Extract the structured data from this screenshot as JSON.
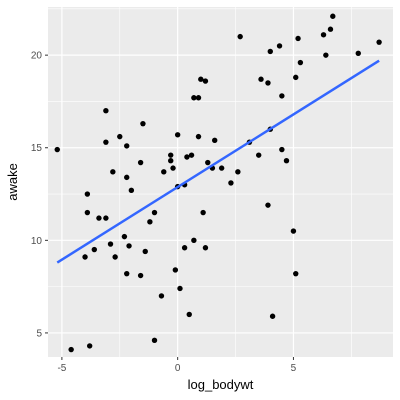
{
  "chart_data": {
    "type": "scatter",
    "xlabel": "log_bodywt",
    "ylabel": "awake",
    "xlim": [
      -5.6,
      9.3
    ],
    "ylim": [
      3.7,
      22.6
    ],
    "x_ticks": [
      -5,
      0,
      5
    ],
    "y_ticks": [
      5,
      10,
      15,
      20
    ],
    "x_tick_labels": [
      "-5",
      "0",
      "5"
    ],
    "y_tick_labels": [
      "5",
      "10",
      "15",
      "20"
    ],
    "grid": true,
    "panel_color": "#ebebeb",
    "point_color": "#000000",
    "fit_line": {
      "x": [
        -5.2,
        8.7
      ],
      "y": [
        8.8,
        19.7
      ],
      "color": "#3366ff"
    },
    "points": [
      [
        -5.2,
        14.9
      ],
      [
        -4.6,
        4.1
      ],
      [
        -3.8,
        4.3
      ],
      [
        -4.0,
        9.1
      ],
      [
        -3.6,
        9.5
      ],
      [
        -3.9,
        11.5
      ],
      [
        -3.9,
        12.5
      ],
      [
        -3.4,
        11.2
      ],
      [
        -3.1,
        11.2
      ],
      [
        -2.9,
        9.8
      ],
      [
        -2.7,
        9.1
      ],
      [
        -3.1,
        15.3
      ],
      [
        -3.1,
        17.0
      ],
      [
        -2.5,
        15.6
      ],
      [
        -2.2,
        15.1
      ],
      [
        -2.8,
        13.7
      ],
      [
        -2.2,
        13.4
      ],
      [
        -2.0,
        12.7
      ],
      [
        -2.3,
        10.2
      ],
      [
        -2.1,
        9.7
      ],
      [
        -2.2,
        8.2
      ],
      [
        -1.6,
        8.1
      ],
      [
        -1.4,
        9.4
      ],
      [
        -1.6,
        14.2
      ],
      [
        -1.5,
        16.3
      ],
      [
        -1.0,
        11.5
      ],
      [
        -1.2,
        11.0
      ],
      [
        -0.7,
        7.0
      ],
      [
        -1.0,
        4.6
      ],
      [
        -0.6,
        13.7
      ],
      [
        -0.3,
        14.3
      ],
      [
        -0.3,
        14.6
      ],
      [
        -0.2,
        13.9
      ],
      [
        0.0,
        15.7
      ],
      [
        0.0,
        12.9
      ],
      [
        0.3,
        13.0
      ],
      [
        0.4,
        14.5
      ],
      [
        0.6,
        14.6
      ],
      [
        -0.1,
        8.4
      ],
      [
        0.1,
        7.4
      ],
      [
        0.3,
        9.6
      ],
      [
        0.5,
        6.0
      ],
      [
        0.7,
        10.0
      ],
      [
        0.7,
        17.7
      ],
      [
        0.9,
        17.7
      ],
      [
        1.0,
        18.7
      ],
      [
        1.2,
        18.6
      ],
      [
        0.9,
        15.6
      ],
      [
        1.1,
        11.5
      ],
      [
        1.2,
        9.6
      ],
      [
        1.3,
        14.2
      ],
      [
        1.5,
        13.9
      ],
      [
        1.6,
        15.4
      ],
      [
        1.9,
        13.9
      ],
      [
        2.3,
        13.1
      ],
      [
        2.6,
        13.7
      ],
      [
        2.7,
        21.0
      ],
      [
        3.1,
        15.3
      ],
      [
        3.5,
        14.6
      ],
      [
        3.6,
        18.7
      ],
      [
        3.9,
        18.5
      ],
      [
        4.0,
        20.2
      ],
      [
        4.0,
        16.0
      ],
      [
        4.4,
        20.5
      ],
      [
        4.5,
        17.8
      ],
      [
        4.5,
        14.9
      ],
      [
        4.7,
        14.3
      ],
      [
        3.9,
        11.9
      ],
      [
        4.1,
        5.9
      ],
      [
        5.0,
        10.5
      ],
      [
        5.1,
        8.2
      ],
      [
        5.1,
        18.8
      ],
      [
        5.3,
        19.6
      ],
      [
        5.2,
        20.9
      ],
      [
        6.4,
        20.0
      ],
      [
        6.3,
        21.1
      ],
      [
        6.6,
        21.4
      ],
      [
        6.7,
        22.1
      ],
      [
        7.8,
        20.1
      ],
      [
        8.7,
        20.7
      ]
    ]
  }
}
